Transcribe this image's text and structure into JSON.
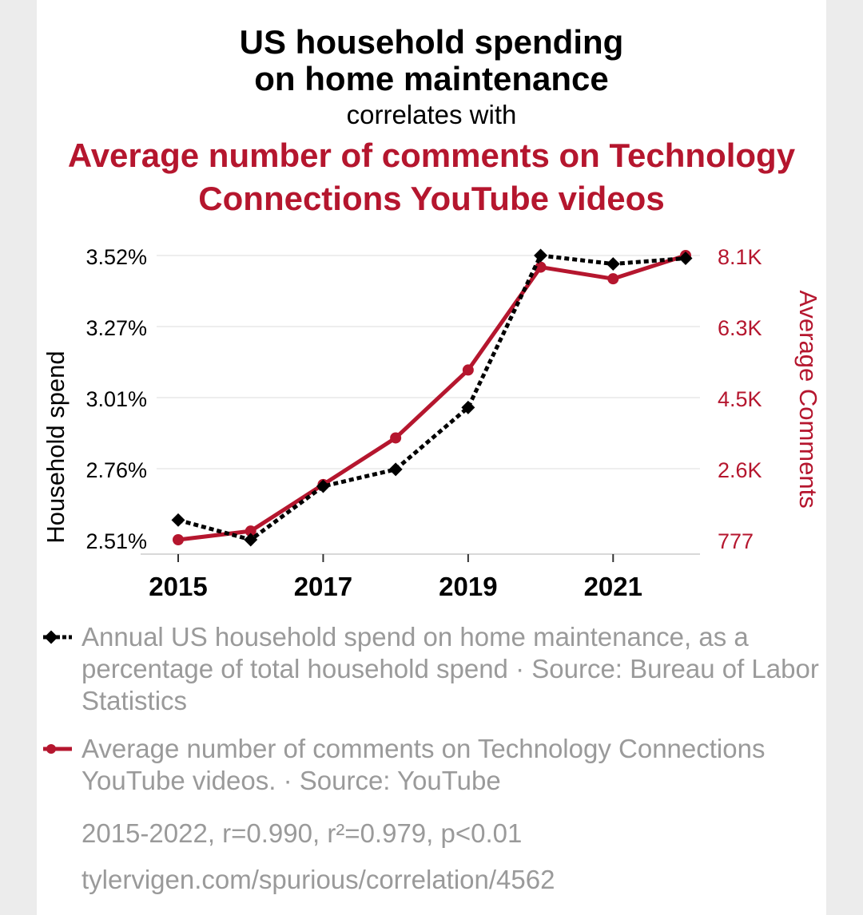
{
  "title_line1": "US household spending",
  "title_line2": "on home maintenance",
  "connector": "correlates with",
  "title2_line1": "Average number of comments on Technology",
  "title2_line2": "Connections YouTube videos",
  "left_axis_label": "Household spend",
  "right_axis_label": "Average Comments",
  "legend": [
    "Annual US household spend on home maintenance, as a percentage of total household spend · Source: Bureau of Labor Statistics",
    "Average number of comments on Technology Connections YouTube videos. · Source: YouTube"
  ],
  "stats": "2015-2022, r=0.990, r²=0.979, p<0.01",
  "url": "tylervigen.com/spurious/correlation/4562",
  "colors": {
    "series1": "#000000",
    "series2": "#b5162e",
    "muted": "#9a9a9a"
  },
  "chart_data": {
    "type": "line",
    "x": [
      2015,
      2016,
      2017,
      2018,
      2019,
      2020,
      2021,
      2022
    ],
    "x_ticks": [
      "2015",
      "2017",
      "2019",
      "2021"
    ],
    "y_left_ticks": [
      "3.52%",
      "3.27%",
      "3.01%",
      "2.76%",
      "2.51%"
    ],
    "y_right_ticks": [
      "8.1K",
      "6.3K",
      "4.5K",
      "2.6K",
      "777"
    ],
    "ylim_left": [
      2.51,
      3.52
    ],
    "ylim_right": [
      777,
      8100
    ],
    "grid": true,
    "series": [
      {
        "name": "Annual US household spend on home maintenance, as a percentage of total household spend",
        "axis": "left",
        "style": "dotted-diamond",
        "values": [
          2.58,
          2.51,
          2.7,
          2.76,
          2.98,
          3.52,
          3.49,
          3.51
        ]
      },
      {
        "name": "Average number of comments on Technology Connections YouTube videos",
        "axis": "right",
        "style": "solid-circle",
        "values": [
          777,
          1000,
          2200,
          3400,
          5150,
          7800,
          7500,
          8100
        ]
      }
    ]
  }
}
